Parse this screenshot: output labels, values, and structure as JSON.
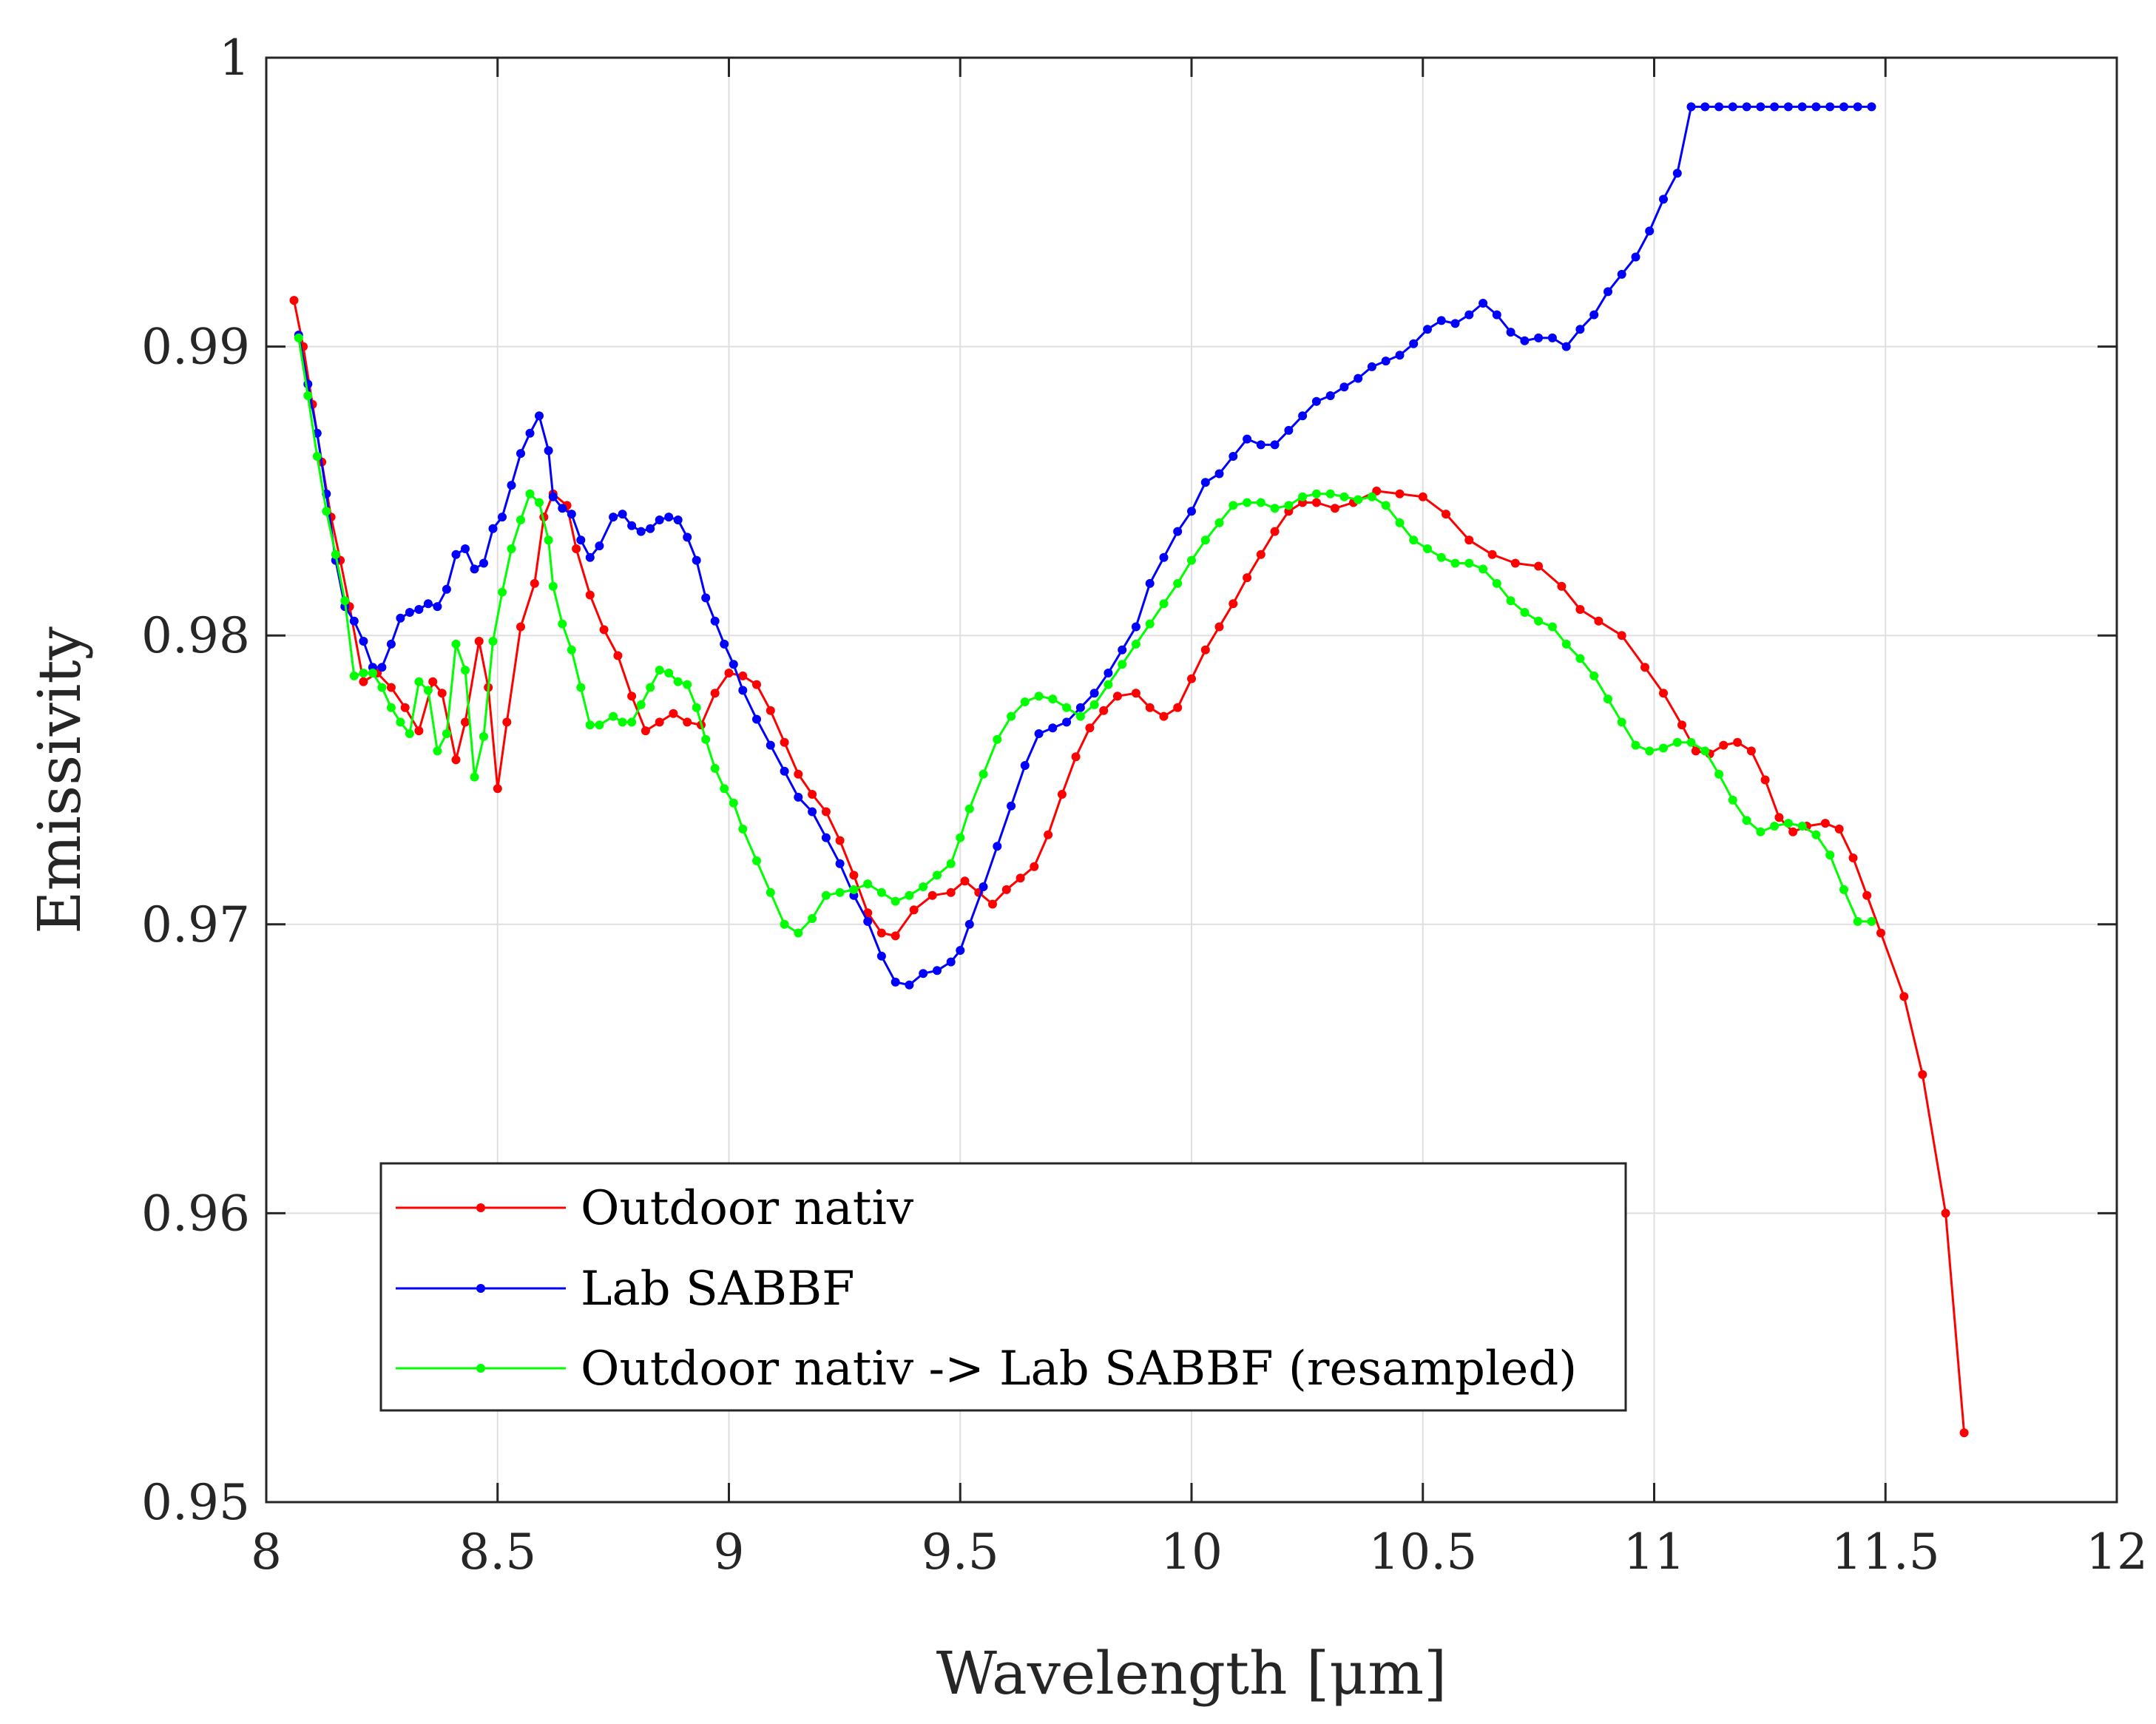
{
  "chart_data": {
    "type": "line",
    "title": "",
    "xlabel": "Wavelength [μm]",
    "ylabel": "Emissivity",
    "xlim": [
      8,
      12
    ],
    "ylim": [
      0.95,
      1
    ],
    "xticks": [
      8,
      8.5,
      9,
      9.5,
      10,
      10.5,
      11,
      11.5,
      12
    ],
    "xtick_labels": [
      "8",
      "8.5",
      "9",
      "9.5",
      "10",
      "10.5",
      "11",
      "11.5",
      "12"
    ],
    "yticks": [
      0.95,
      0.96,
      0.97,
      0.98,
      0.99,
      1
    ],
    "ytick_labels": [
      "0.95",
      "0.96",
      "0.97",
      "0.98",
      "0.99",
      "1"
    ],
    "grid": true,
    "legend_position": "bottom-left",
    "series": [
      {
        "name": "Outdoor nativ",
        "color": "#ff0000",
        "x": [
          8.06,
          8.08,
          8.1,
          8.12,
          8.14,
          8.16,
          8.18,
          8.21,
          8.24,
          8.27,
          8.3,
          8.33,
          8.36,
          8.38,
          8.41,
          8.43,
          8.46,
          8.48,
          8.5,
          8.52,
          8.55,
          8.58,
          8.6,
          8.62,
          8.65,
          8.67,
          8.7,
          8.73,
          8.76,
          8.79,
          8.82,
          8.85,
          8.88,
          8.91,
          8.94,
          8.97,
          9.0,
          9.03,
          9.06,
          9.09,
          9.12,
          9.15,
          9.18,
          9.21,
          9.24,
          9.27,
          9.3,
          9.33,
          9.36,
          9.4,
          9.44,
          9.48,
          9.51,
          9.54,
          9.57,
          9.6,
          9.63,
          9.66,
          9.69,
          9.72,
          9.75,
          9.78,
          9.81,
          9.84,
          9.88,
          9.91,
          9.94,
          9.97,
          10.0,
          10.03,
          10.06,
          10.09,
          10.12,
          10.15,
          10.18,
          10.21,
          10.24,
          10.27,
          10.31,
          10.35,
          10.4,
          10.45,
          10.5,
          10.55,
          10.6,
          10.65,
          10.7,
          10.75,
          10.8,
          10.84,
          10.88,
          10.93,
          10.98,
          11.02,
          11.06,
          11.09,
          11.12,
          11.15,
          11.18,
          11.21,
          11.24,
          11.27,
          11.3,
          11.33,
          11.37,
          11.4,
          11.43,
          11.46,
          11.49,
          11.54,
          11.58,
          11.63,
          11.67
        ],
        "y": [
          0.9916,
          0.99,
          0.988,
          0.986,
          0.9841,
          0.9826,
          0.981,
          0.9784,
          0.9787,
          0.9782,
          0.9775,
          0.9767,
          0.9784,
          0.978,
          0.9757,
          0.977,
          0.9798,
          0.9782,
          0.9747,
          0.977,
          0.9803,
          0.9818,
          0.9841,
          0.9849,
          0.9845,
          0.983,
          0.9814,
          0.9802,
          0.9793,
          0.9779,
          0.9767,
          0.977,
          0.9773,
          0.977,
          0.9769,
          0.978,
          0.9787,
          0.9786,
          0.9783,
          0.9774,
          0.9763,
          0.9752,
          0.9745,
          0.9739,
          0.9729,
          0.9717,
          0.9704,
          0.9697,
          0.9696,
          0.9705,
          0.971,
          0.9711,
          0.9715,
          0.9711,
          0.9707,
          0.9712,
          0.9716,
          0.972,
          0.9731,
          0.9745,
          0.9758,
          0.9768,
          0.9774,
          0.9779,
          0.978,
          0.9775,
          0.9772,
          0.9775,
          0.9785,
          0.9795,
          0.9803,
          0.9811,
          0.982,
          0.9828,
          0.9836,
          0.9843,
          0.9846,
          0.9846,
          0.9844,
          0.9846,
          0.985,
          0.9849,
          0.9848,
          0.9842,
          0.9833,
          0.9828,
          0.9825,
          0.9824,
          0.9817,
          0.9809,
          0.9805,
          0.98,
          0.9789,
          0.978,
          0.9769,
          0.976,
          0.9759,
          0.9762,
          0.9763,
          0.976,
          0.975,
          0.9737,
          0.9732,
          0.9734,
          0.9735,
          0.9733,
          0.9723,
          0.971,
          0.9697,
          0.9675,
          0.9648,
          0.96,
          0.9524
        ]
      },
      {
        "name": "Lab SABBF",
        "color": "#0000ff",
        "x": [
          8.07,
          8.09,
          8.11,
          8.13,
          8.15,
          8.17,
          8.19,
          8.21,
          8.23,
          8.25,
          8.27,
          8.29,
          8.31,
          8.33,
          8.35,
          8.37,
          8.39,
          8.41,
          8.43,
          8.45,
          8.47,
          8.49,
          8.51,
          8.53,
          8.55,
          8.57,
          8.59,
          8.61,
          8.62,
          8.64,
          8.66,
          8.68,
          8.7,
          8.72,
          8.75,
          8.77,
          8.79,
          8.81,
          8.83,
          8.85,
          8.87,
          8.89,
          8.91,
          8.93,
          8.95,
          8.97,
          8.99,
          9.01,
          9.03,
          9.06,
          9.09,
          9.12,
          9.15,
          9.18,
          9.21,
          9.24,
          9.27,
          9.3,
          9.33,
          9.36,
          9.39,
          9.42,
          9.45,
          9.48,
          9.5,
          9.52,
          9.55,
          9.58,
          9.61,
          9.64,
          9.67,
          9.7,
          9.73,
          9.76,
          9.79,
          9.82,
          9.85,
          9.88,
          9.91,
          9.94,
          9.97,
          10.0,
          10.03,
          10.06,
          10.09,
          10.12,
          10.15,
          10.18,
          10.21,
          10.24,
          10.27,
          10.3,
          10.33,
          10.36,
          10.39,
          10.42,
          10.45,
          10.48,
          10.51,
          10.54,
          10.57,
          10.6,
          10.63,
          10.66,
          10.69,
          10.72,
          10.75,
          10.78,
          10.81,
          10.84,
          10.87,
          10.9,
          10.93,
          10.96,
          10.99,
          11.02,
          11.05,
          11.08,
          11.11,
          11.14,
          11.17,
          11.2,
          11.23,
          11.26,
          11.29,
          11.32,
          11.35,
          11.38,
          11.41,
          11.44,
          11.47
        ],
        "y": [
          0.9904,
          0.9887,
          0.987,
          0.9849,
          0.9826,
          0.981,
          0.9805,
          0.9798,
          0.9789,
          0.9789,
          0.9797,
          0.9806,
          0.9808,
          0.9809,
          0.9811,
          0.981,
          0.9816,
          0.9828,
          0.983,
          0.9823,
          0.9825,
          0.9837,
          0.9841,
          0.9852,
          0.9863,
          0.987,
          0.9876,
          0.9864,
          0.9848,
          0.9844,
          0.9842,
          0.9833,
          0.9827,
          0.9831,
          0.9841,
          0.9842,
          0.9838,
          0.9836,
          0.9837,
          0.984,
          0.9841,
          0.984,
          0.9834,
          0.9826,
          0.9813,
          0.9805,
          0.9797,
          0.979,
          0.9781,
          0.9771,
          0.9762,
          0.9753,
          0.9744,
          0.9739,
          0.973,
          0.9721,
          0.971,
          0.9701,
          0.9689,
          0.968,
          0.9679,
          0.9683,
          0.9684,
          0.9687,
          0.9691,
          0.97,
          0.9713,
          0.9727,
          0.9741,
          0.9755,
          0.9766,
          0.9768,
          0.977,
          0.9775,
          0.978,
          0.9787,
          0.9795,
          0.9803,
          0.9818,
          0.9827,
          0.9836,
          0.9843,
          0.9853,
          0.9856,
          0.9862,
          0.9868,
          0.9866,
          0.9866,
          0.9871,
          0.9876,
          0.9881,
          0.9883,
          0.9886,
          0.9889,
          0.9893,
          0.9895,
          0.9897,
          0.9901,
          0.9906,
          0.9909,
          0.9908,
          0.9911,
          0.9915,
          0.9911,
          0.9905,
          0.9902,
          0.9903,
          0.9903,
          0.99,
          0.9906,
          0.9911,
          0.9919,
          0.9925,
          0.9931,
          0.994,
          0.9951,
          0.996,
          0.9983,
          0.9983,
          0.9983,
          0.9983,
          0.9983,
          0.9983,
          0.9983,
          0.9983,
          0.9983,
          0.9983,
          0.9983,
          0.9983,
          0.9983,
          0.9983
        ]
      },
      {
        "name": "Outdoor nativ -> Lab SABBF (resampled)",
        "color": "#00ff00",
        "x": [
          8.07,
          8.09,
          8.11,
          8.13,
          8.15,
          8.17,
          8.19,
          8.21,
          8.23,
          8.25,
          8.27,
          8.29,
          8.31,
          8.33,
          8.35,
          8.37,
          8.39,
          8.41,
          8.43,
          8.45,
          8.47,
          8.49,
          8.51,
          8.53,
          8.55,
          8.57,
          8.59,
          8.61,
          8.62,
          8.64,
          8.66,
          8.68,
          8.7,
          8.72,
          8.75,
          8.77,
          8.79,
          8.81,
          8.83,
          8.85,
          8.87,
          8.89,
          8.91,
          8.93,
          8.95,
          8.97,
          8.99,
          9.01,
          9.03,
          9.06,
          9.09,
          9.12,
          9.15,
          9.18,
          9.21,
          9.24,
          9.27,
          9.3,
          9.33,
          9.36,
          9.39,
          9.42,
          9.45,
          9.48,
          9.5,
          9.52,
          9.55,
          9.58,
          9.61,
          9.64,
          9.67,
          9.7,
          9.73,
          9.76,
          9.79,
          9.82,
          9.85,
          9.88,
          9.91,
          9.94,
          9.97,
          10.0,
          10.03,
          10.06,
          10.09,
          10.12,
          10.15,
          10.18,
          10.21,
          10.24,
          10.27,
          10.3,
          10.33,
          10.36,
          10.39,
          10.42,
          10.45,
          10.48,
          10.51,
          10.54,
          10.57,
          10.6,
          10.63,
          10.66,
          10.69,
          10.72,
          10.75,
          10.78,
          10.81,
          10.84,
          10.87,
          10.9,
          10.93,
          10.96,
          10.99,
          11.02,
          11.05,
          11.08,
          11.11,
          11.14,
          11.17,
          11.2,
          11.23,
          11.26,
          11.29,
          11.32,
          11.35,
          11.38,
          11.41,
          11.44,
          11.47
        ],
        "y": [
          0.9903,
          0.9883,
          0.9862,
          0.9843,
          0.9828,
          0.9812,
          0.9786,
          0.9787,
          0.9787,
          0.9782,
          0.9775,
          0.977,
          0.9766,
          0.9784,
          0.9781,
          0.976,
          0.9766,
          0.9797,
          0.9788,
          0.9751,
          0.9765,
          0.9798,
          0.9815,
          0.983,
          0.984,
          0.9849,
          0.9846,
          0.9833,
          0.9817,
          0.9804,
          0.9795,
          0.9782,
          0.9769,
          0.9769,
          0.9772,
          0.977,
          0.977,
          0.9776,
          0.9782,
          0.9788,
          0.9787,
          0.9784,
          0.9783,
          0.9775,
          0.9764,
          0.9754,
          0.9747,
          0.9742,
          0.9733,
          0.9722,
          0.9711,
          0.97,
          0.9697,
          0.9702,
          0.971,
          0.9711,
          0.9712,
          0.9714,
          0.9711,
          0.9708,
          0.971,
          0.9713,
          0.9717,
          0.9721,
          0.973,
          0.974,
          0.9752,
          0.9764,
          0.9772,
          0.9777,
          0.9779,
          0.9778,
          0.9775,
          0.9772,
          0.9776,
          0.9783,
          0.979,
          0.9797,
          0.9804,
          0.9811,
          0.9818,
          0.9826,
          0.9833,
          0.9839,
          0.9845,
          0.9846,
          0.9846,
          0.9844,
          0.9845,
          0.9848,
          0.9849,
          0.9849,
          0.9848,
          0.9847,
          0.9848,
          0.9845,
          0.9839,
          0.9833,
          0.983,
          0.9827,
          0.9825,
          0.9825,
          0.9823,
          0.9818,
          0.9812,
          0.9808,
          0.9805,
          0.9803,
          0.9797,
          0.9792,
          0.9786,
          0.9778,
          0.977,
          0.9762,
          0.976,
          0.9761,
          0.9763,
          0.9763,
          0.976,
          0.9752,
          0.9743,
          0.9736,
          0.9732,
          0.9734,
          0.9735,
          0.9734,
          0.9731,
          0.9724,
          0.9712,
          0.9701,
          0.9701
        ]
      }
    ]
  }
}
